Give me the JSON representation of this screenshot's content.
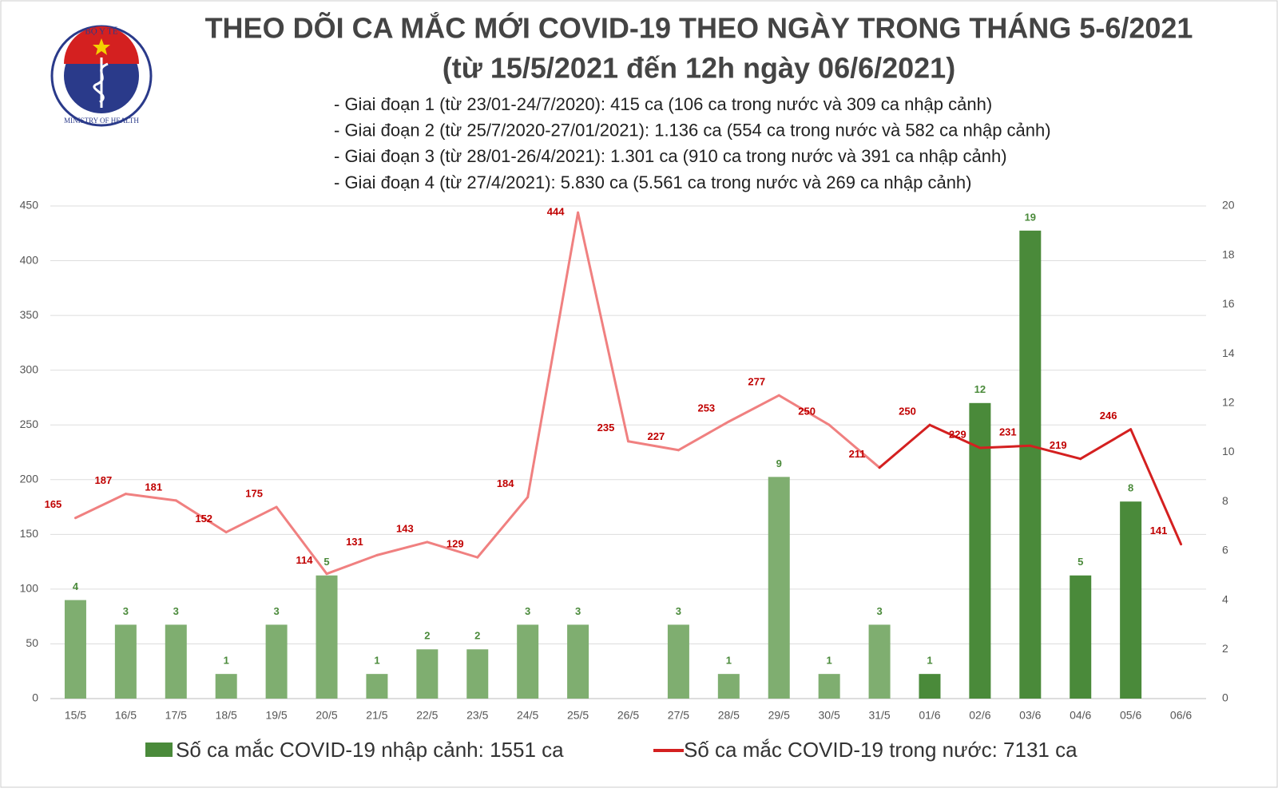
{
  "logo": {
    "top_text": "BỘ Y TẾ",
    "bottom_text": "MINISTRY OF HEALTH"
  },
  "chart_data": {
    "type": "bar-line",
    "title": "THEO DÕI CA MẮC MỚI COVID-19 THEO NGÀY TRONG THÁNG 5-6/2021",
    "subtitle": "(từ 15/5/2021 đến 12h ngày 06/6/2021)",
    "notes": [
      "- Giai đoạn 1 (từ 23/01-24/7/2020): 415 ca (106 ca trong nước và 309 ca nhập cảnh)",
      "- Giai đoạn 2 (từ 25/7/2020-27/01/2021): 1.136 ca (554 ca trong nước và 582 ca nhập cảnh)",
      "- Giai đoạn 3 (từ 28/01-26/4/2021): 1.301 ca (910 ca trong nước và 391 ca nhập cảnh)",
      "- Giai đoạn 4 (từ 27/4/2021): 5.830 ca (5.561 ca trong nước và 269 ca nhập cảnh)"
    ],
    "categories": [
      "15/5",
      "16/5",
      "17/5",
      "18/5",
      "19/5",
      "20/5",
      "21/5",
      "22/5",
      "23/5",
      "24/5",
      "25/5",
      "26/5",
      "27/5",
      "28/5",
      "29/5",
      "30/5",
      "31/5",
      "01/6",
      "02/6",
      "03/6",
      "04/6",
      "05/6",
      "06/6"
    ],
    "series": [
      {
        "name": "Số ca mắc COVID-19 nhập cảnh: 1551 ca",
        "kind": "bar",
        "axis": "y2",
        "color": "#4a8a3a",
        "values": [
          4,
          3,
          3,
          1,
          3,
          5,
          1,
          2,
          2,
          3,
          3,
          null,
          3,
          1,
          9,
          1,
          3,
          1,
          12,
          19,
          5,
          8,
          null
        ],
        "colors": [
          "#7fae70",
          "#7fae70",
          "#7fae70",
          "#7fae70",
          "#7fae70",
          "#7fae70",
          "#7fae70",
          "#7fae70",
          "#7fae70",
          "#7fae70",
          "#7fae70",
          "#7fae70",
          "#7fae70",
          "#7fae70",
          "#7fae70",
          "#7fae70",
          "#7fae70",
          "#4a8a3a",
          "#4a8a3a",
          "#4a8a3a",
          "#4a8a3a",
          "#4a8a3a",
          "#4a8a3a"
        ]
      },
      {
        "name": "Số ca mắc COVID-19 trong nước: 7131 ca",
        "kind": "line",
        "color": "#d42020",
        "values": [
          165,
          187,
          181,
          152,
          175,
          114,
          131,
          143,
          129,
          184,
          444,
          235,
          227,
          253,
          277,
          250,
          211,
          250,
          229,
          231,
          219,
          246,
          141
        ],
        "colors": [
          "#f08080",
          "#f08080",
          "#f08080",
          "#f08080",
          "#f08080",
          "#f08080",
          "#f08080",
          "#f08080",
          "#f08080",
          "#f08080",
          "#f08080",
          "#f08080",
          "#f08080",
          "#f08080",
          "#f08080",
          "#f08080",
          "#f08080",
          "#d42020",
          "#d42020",
          "#d42020",
          "#d42020",
          "#d42020",
          "#d42020"
        ]
      }
    ],
    "ylim": [
      0,
      450
    ],
    "yticks": [
      0,
      50,
      100,
      150,
      200,
      250,
      300,
      350,
      400,
      450
    ],
    "y2lim": [
      0,
      20
    ],
    "y2ticks": [
      0,
      2,
      4,
      6,
      8,
      10,
      12,
      14,
      16,
      18,
      20
    ],
    "grid": true
  }
}
